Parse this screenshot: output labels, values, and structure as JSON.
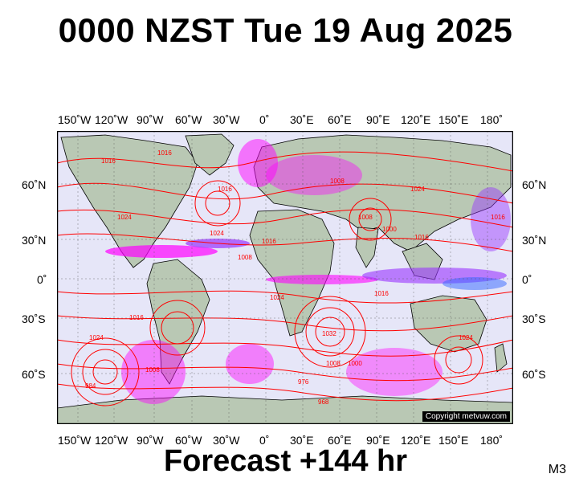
{
  "title": "0000 NZST Tue 19 Aug 2025",
  "footer": "Forecast +144 hr",
  "model_code": "M3",
  "copyright": "Copyright metvuw.com",
  "lon_labels": [
    "150˚W",
    "120˚W",
    "90˚W",
    "60˚W",
    "30˚W",
    "0˚",
    "30˚E",
    "60˚E",
    "90˚E",
    "120˚E",
    "150˚E",
    "180˚"
  ],
  "lat_labels_left": [
    "60˚N",
    "30˚N",
    "0˚",
    "30˚S",
    "60˚S"
  ],
  "lat_labels_right": [
    "60˚N",
    "30˚N",
    "0˚",
    "30˚S",
    "60˚S"
  ],
  "isobar_labels": [
    "1016",
    "1024",
    "1016",
    "1024",
    "1016",
    "1008",
    "1016",
    "1024",
    "1032",
    "1008",
    "1000",
    "1008",
    "1016",
    "1024",
    "1016",
    "1008",
    "984",
    "976",
    "968",
    "1000",
    "1016",
    "1024",
    "1016",
    "1024",
    "1008"
  ],
  "colors": {
    "ocean": "#e6e6f8",
    "land": "#b9c8b4",
    "isobar": "#ff0000",
    "precip_magenta": "#ff00ff",
    "precip_purple": "#9933ff",
    "precip_blue": "#3366ff",
    "border": "#000000"
  }
}
